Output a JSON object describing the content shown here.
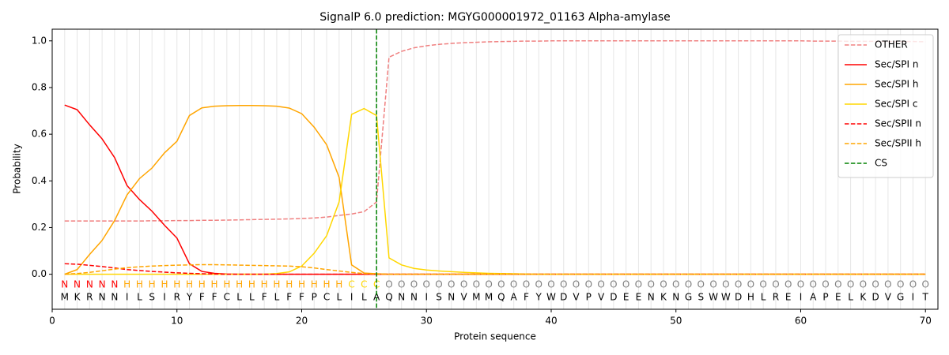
{
  "chart_data": {
    "type": "line",
    "title": "SignalP 6.0 prediction: MGYG000001972_01163 Alpha-amylase",
    "xlabel": "Protein sequence",
    "ylabel": "Probability",
    "x": [
      1,
      2,
      3,
      4,
      5,
      6,
      7,
      8,
      9,
      10,
      11,
      12,
      13,
      14,
      15,
      16,
      17,
      18,
      19,
      20,
      21,
      22,
      23,
      24,
      25,
      26,
      27,
      28,
      29,
      30,
      31,
      32,
      33,
      34,
      35,
      36,
      37,
      38,
      39,
      40,
      41,
      42,
      43,
      44,
      45,
      46,
      47,
      48,
      49,
      50,
      51,
      52,
      53,
      54,
      55,
      56,
      57,
      58,
      59,
      60,
      61,
      62,
      63,
      64,
      65,
      66,
      67,
      68,
      69,
      70
    ],
    "sequence": [
      "M",
      "K",
      "R",
      "N",
      "N",
      "I",
      "L",
      "S",
      "I",
      "R",
      "Y",
      "F",
      "F",
      "C",
      "L",
      "L",
      "F",
      "L",
      "F",
      "F",
      "P",
      "C",
      "L",
      "I",
      "L",
      "A",
      "Q",
      "N",
      "N",
      "I",
      "S",
      "N",
      "V",
      "M",
      "M",
      "Q",
      "A",
      "F",
      "Y",
      "W",
      "D",
      "V",
      "P",
      "V",
      "D",
      "E",
      "E",
      "N",
      "K",
      "N",
      "G",
      "S",
      "W",
      "W",
      "D",
      "H",
      "L",
      "R",
      "E",
      "I",
      "A",
      "P",
      "E",
      "L",
      "K",
      "D",
      "V",
      "G",
      "I",
      "T"
    ],
    "regions": [
      "N",
      "N",
      "N",
      "N",
      "N",
      "H",
      "H",
      "H",
      "H",
      "H",
      "H",
      "H",
      "H",
      "H",
      "H",
      "H",
      "H",
      "H",
      "H",
      "H",
      "H",
      "H",
      "H",
      "C",
      "C",
      "C",
      "O",
      "O",
      "O",
      "O",
      "O",
      "O",
      "O",
      "O",
      "O",
      "O",
      "O",
      "O",
      "O",
      "O",
      "O",
      "O",
      "O",
      "O",
      "O",
      "O",
      "O",
      "O",
      "O",
      "O",
      "O",
      "O",
      "O",
      "O",
      "O",
      "O",
      "O",
      "O",
      "O",
      "O",
      "O",
      "O",
      "O",
      "O",
      "O",
      "O",
      "O",
      "O",
      "O",
      "O"
    ],
    "region_colors": {
      "N": "#ff0000",
      "H": "#ffa500",
      "C": "#ffd700",
      "O": "#808080"
    },
    "series": [
      {
        "name": "OTHER",
        "color": "#f08080",
        "dashed": true,
        "values": [
          0.228,
          0.228,
          0.228,
          0.228,
          0.228,
          0.228,
          0.228,
          0.229,
          0.229,
          0.23,
          0.23,
          0.231,
          0.231,
          0.232,
          0.233,
          0.234,
          0.235,
          0.236,
          0.237,
          0.239,
          0.241,
          0.245,
          0.252,
          0.258,
          0.268,
          0.31,
          0.93,
          0.955,
          0.97,
          0.979,
          0.985,
          0.989,
          0.992,
          0.994,
          0.996,
          0.997,
          0.998,
          0.999,
          0.999,
          1.0,
          1.0,
          1.0,
          1.0,
          1.0,
          1.0,
          1.0,
          1.0,
          1.0,
          1.0,
          1.0,
          1.0,
          1.0,
          1.0,
          1.0,
          1.0,
          1.0,
          1.0,
          1.0,
          1.0,
          1.0,
          0.999,
          0.999,
          0.999,
          0.998,
          0.998,
          0.998,
          0.997,
          0.997,
          0.997,
          0.996
        ]
      },
      {
        "name": "Sec/SPI n",
        "color": "#ff0000",
        "dashed": false,
        "values": [
          0.725,
          0.705,
          0.64,
          0.58,
          0.5,
          0.38,
          0.32,
          0.27,
          0.21,
          0.155,
          0.045,
          0.012,
          0.004,
          0.001,
          0,
          0,
          0,
          0,
          0,
          0,
          0,
          0,
          0,
          0,
          0,
          0,
          0,
          0,
          0,
          0,
          0,
          0,
          0,
          0,
          0,
          0,
          0,
          0,
          0,
          0,
          0,
          0,
          0,
          0,
          0,
          0,
          0,
          0,
          0,
          0,
          0,
          0,
          0,
          0,
          0,
          0,
          0,
          0,
          0,
          0,
          0,
          0,
          0,
          0,
          0,
          0,
          0,
          0,
          0,
          0
        ]
      },
      {
        "name": "Sec/SPI h",
        "color": "#ffa500",
        "dashed": false,
        "values": [
          0.0,
          0.02,
          0.085,
          0.145,
          0.23,
          0.34,
          0.41,
          0.455,
          0.52,
          0.57,
          0.68,
          0.713,
          0.72,
          0.722,
          0.723,
          0.723,
          0.722,
          0.72,
          0.712,
          0.688,
          0.63,
          0.555,
          0.415,
          0.04,
          0.005,
          0.002,
          0,
          0,
          0,
          0,
          0,
          0,
          0,
          0,
          0,
          0,
          0,
          0,
          0,
          0,
          0,
          0,
          0,
          0,
          0,
          0,
          0,
          0,
          0,
          0,
          0,
          0,
          0,
          0,
          0,
          0,
          0,
          0,
          0,
          0,
          0,
          0,
          0,
          0,
          0,
          0,
          0,
          0,
          0,
          0
        ]
      },
      {
        "name": "Sec/SPI c",
        "color": "#ffd700",
        "dashed": false,
        "values": [
          0,
          0,
          0,
          0,
          0,
          0,
          0,
          0,
          0,
          0,
          0,
          0,
          0,
          0,
          0,
          0,
          0,
          0.003,
          0.01,
          0.035,
          0.09,
          0.165,
          0.31,
          0.685,
          0.71,
          0.68,
          0.07,
          0.04,
          0.025,
          0.018,
          0.014,
          0.011,
          0.008,
          0.006,
          0.004,
          0.003,
          0.002,
          0.001,
          0,
          0,
          0,
          0,
          0,
          0,
          0,
          0,
          0,
          0,
          0,
          0,
          0,
          0,
          0,
          0,
          0,
          0,
          0,
          0,
          0,
          0,
          0,
          0,
          0,
          0,
          0,
          0,
          0,
          0,
          0,
          0
        ]
      },
      {
        "name": "Sec/SPII n",
        "color": "#ff0000",
        "dashed": true,
        "values": [
          0.045,
          0.043,
          0.038,
          0.033,
          0.027,
          0.02,
          0.016,
          0.012,
          0.009,
          0.006,
          0.004,
          0.002,
          0.001,
          0,
          0,
          0,
          0,
          0,
          0,
          0,
          0,
          0,
          0,
          0,
          0,
          0,
          0,
          0,
          0,
          0,
          0,
          0,
          0,
          0,
          0,
          0,
          0,
          0,
          0,
          0,
          0,
          0,
          0,
          0,
          0,
          0,
          0,
          0,
          0,
          0,
          0,
          0,
          0,
          0,
          0,
          0,
          0,
          0,
          0,
          0,
          0,
          0,
          0,
          0,
          0,
          0,
          0,
          0,
          0,
          0
        ]
      },
      {
        "name": "Sec/SPII h",
        "color": "#ffa500",
        "dashed": true,
        "values": [
          0.0,
          0.003,
          0.008,
          0.015,
          0.022,
          0.028,
          0.032,
          0.035,
          0.037,
          0.039,
          0.04,
          0.041,
          0.041,
          0.04,
          0.039,
          0.038,
          0.037,
          0.036,
          0.035,
          0.032,
          0.027,
          0.02,
          0.014,
          0.008,
          0.003,
          0.001,
          0,
          0,
          0,
          0,
          0,
          0,
          0,
          0,
          0,
          0,
          0,
          0,
          0,
          0,
          0,
          0,
          0,
          0,
          0,
          0,
          0,
          0,
          0,
          0,
          0,
          0,
          0,
          0,
          0,
          0,
          0,
          0,
          0,
          0,
          0,
          0,
          0,
          0,
          0,
          0,
          0,
          0,
          0,
          0
        ]
      }
    ],
    "cleavage_site": {
      "name": "CS",
      "x": 26,
      "color": "#008000"
    },
    "xlim": [
      0,
      71
    ],
    "ylim": [
      -0.15,
      1.05
    ],
    "xticks": [
      0,
      10,
      20,
      30,
      40,
      50,
      60,
      70
    ],
    "yticks": [
      {
        "value": 0,
        "label": "0.0"
      },
      {
        "value": 0.2,
        "label": "0.2"
      },
      {
        "value": 0.4,
        "label": "0.4"
      },
      {
        "value": 0.6,
        "label": "0.6"
      },
      {
        "value": 0.8,
        "label": "0.8"
      },
      {
        "value": 1,
        "label": "1.0"
      }
    ],
    "legend": "upper right"
  }
}
